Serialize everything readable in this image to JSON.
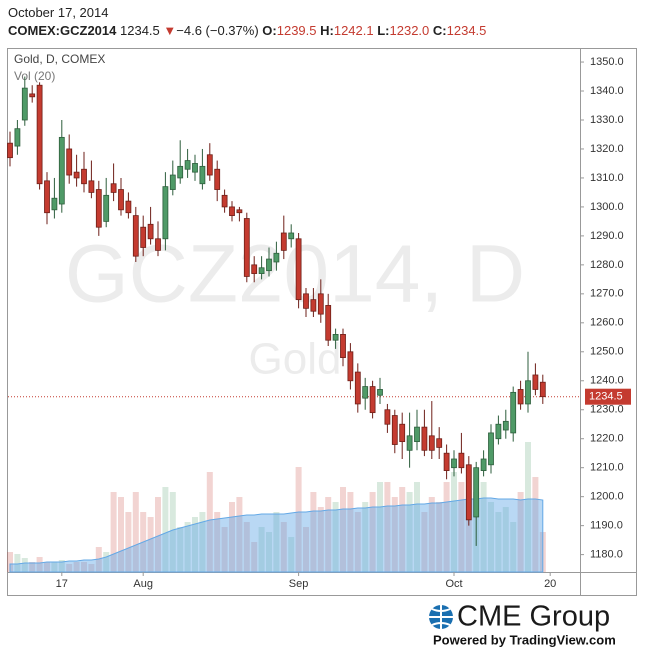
{
  "header": {
    "date": "October 17, 2014",
    "symbol": "COMEX:GCZ2014",
    "last": "1234.5",
    "arrow": "▼",
    "change": "−4.6 (−0.37%)",
    "ohlc": [
      {
        "key": "O:",
        "value": "1239.5"
      },
      {
        "key": "H:",
        "value": "1242.1"
      },
      {
        "key": "L:",
        "value": "1232.0"
      },
      {
        "key": "C:",
        "value": "1234.5"
      }
    ]
  },
  "chart_data": {
    "type": "candlestick",
    "legend": "Gold, D, COMEX",
    "volume_legend": "Vol (20)",
    "watermark": "GCZ2014, D",
    "watermark_sub": "Gold",
    "categories": [
      null,
      null,
      null,
      null,
      null,
      null,
      null,
      "17",
      null,
      null,
      null,
      null,
      null,
      null,
      null,
      null,
      null,
      null,
      "Aug",
      null,
      null,
      null,
      null,
      null,
      null,
      null,
      null,
      null,
      null,
      null,
      null,
      null,
      null,
      null,
      null,
      null,
      null,
      null,
      null,
      "Sep",
      null,
      null,
      null,
      null,
      null,
      null,
      null,
      null,
      null,
      null,
      null,
      null,
      null,
      null,
      null,
      null,
      null,
      null,
      null,
      null,
      "Oct",
      null,
      null,
      null,
      null,
      null,
      null,
      null,
      null,
      null,
      null,
      null,
      null,
      "20"
    ],
    "open": [
      1322,
      1321,
      1330,
      1339,
      1342,
      1309,
      1299,
      1301,
      1320,
      1312,
      1313,
      1309,
      1306,
      1295,
      1308,
      1306,
      1302,
      1297,
      1293,
      1294,
      1289,
      1289,
      1306,
      1310,
      1313,
      1312,
      1308,
      1318,
      1313,
      1304,
      1300,
      1299,
      1296,
      1280,
      1277,
      1278,
      1281,
      1291,
      1289,
      1289,
      1270,
      1268,
      1270,
      1266,
      1254,
      1256,
      1250,
      1243,
      1234,
      1238,
      1235,
      1230,
      1228,
      1225,
      1216,
      1219,
      1224,
      1221,
      1220,
      1215,
      1210,
      1215,
      1211,
      1193,
      1209,
      1211,
      1220,
      1223,
      1222,
      1237,
      1232,
      1242,
      1239.5,
      null
    ],
    "high": [
      1326,
      1330,
      1345,
      1342,
      1343,
      1312,
      1310,
      1330,
      1325,
      1318,
      1319,
      1316,
      1309,
      1310,
      1315,
      1310,
      1305,
      1300,
      1297,
      1300,
      1295,
      1312,
      1316,
      1323,
      1320,
      1318,
      1320,
      1322,
      1316,
      1306,
      1302,
      1300,
      1298,
      1283,
      1283,
      1286,
      1288,
      1297,
      1294,
      1291,
      1272,
      1272,
      1275,
      1270,
      1258,
      1258,
      1253,
      1246,
      1241,
      1240,
      1241,
      1232,
      1230,
      1229,
      1229,
      1230,
      1230,
      1233,
      1224,
      1218,
      1216,
      1222,
      1214,
      1212,
      1216,
      1225,
      1228,
      1230,
      1238,
      1240,
      1250,
      1246,
      1242.1,
      null
    ],
    "low": [
      1314,
      1318,
      1328,
      1336,
      1306,
      1294,
      1296,
      1298,
      1308,
      1307,
      1305,
      1303,
      1290,
      1293,
      1302,
      1297,
      1296,
      1281,
      1283,
      1287,
      1283,
      1285,
      1304,
      1308,
      1310,
      1309,
      1306,
      1309,
      1302,
      1298,
      1295,
      1295,
      1274,
      1274,
      1275,
      1276,
      1278,
      1282,
      1286,
      1265,
      1262,
      1262,
      1260,
      1252,
      1251,
      1245,
      1237,
      1229,
      1230,
      1227,
      1232,
      1222,
      1215,
      1213,
      1210,
      1216,
      1214,
      1213,
      1213,
      1206,
      1207,
      1208,
      1190,
      1183,
      1207,
      1208,
      1218,
      1220,
      1219,
      1230,
      1229,
      1235,
      1232,
      null
    ],
    "close": [
      1317,
      1327,
      1341,
      1338,
      1308,
      1298,
      1303,
      1324,
      1311,
      1310,
      1308,
      1305,
      1293,
      1304,
      1305,
      1299,
      1298,
      1283,
      1286,
      1289,
      1285,
      1307,
      1311,
      1314,
      1316,
      1315,
      1314,
      1311,
      1306,
      1300,
      1297,
      1298,
      1276,
      1277,
      1279,
      1282,
      1284,
      1285,
      1291,
      1268,
      1265,
      1264,
      1263,
      1254,
      1256,
      1248,
      1240,
      1232,
      1238,
      1229,
      1237,
      1225,
      1218,
      1219,
      1221,
      1224,
      1216,
      1216,
      1217,
      1209,
      1213,
      1210,
      1192,
      1210,
      1213,
      1222,
      1225,
      1226,
      1236,
      1232,
      1240,
      1237,
      1234.5,
      null
    ],
    "volume": [
      20,
      18,
      14,
      10,
      15,
      10,
      10,
      12,
      8,
      10,
      10,
      8,
      25,
      20,
      80,
      75,
      60,
      80,
      60,
      55,
      75,
      85,
      80,
      45,
      50,
      55,
      60,
      100,
      60,
      45,
      70,
      75,
      50,
      30,
      45,
      40,
      60,
      50,
      35,
      105,
      45,
      80,
      65,
      75,
      70,
      85,
      80,
      60,
      70,
      80,
      90,
      90,
      75,
      85,
      80,
      90,
      60,
      75,
      70,
      90,
      100,
      90,
      105,
      80,
      90,
      70,
      60,
      65,
      50,
      80,
      130,
      95,
      40,
      null
    ],
    "volume_ma": [
      8,
      8,
      9,
      9,
      9,
      10,
      10,
      10,
      11,
      11,
      12,
      12,
      13,
      15,
      18,
      21,
      24,
      27,
      30,
      33,
      36,
      39,
      42,
      44,
      46,
      48,
      50,
      52,
      53,
      54,
      55,
      56,
      57,
      57,
      58,
      58,
      58,
      58,
      59,
      60,
      60,
      61,
      61,
      62,
      62,
      63,
      63,
      64,
      64,
      65,
      65,
      66,
      66,
      67,
      67,
      68,
      68,
      69,
      69,
      70,
      71,
      72,
      73,
      73,
      74,
      74,
      73,
      73,
      73,
      72,
      73,
      73,
      72,
      null
    ],
    "up_color": "#4f9a67",
    "down_color": "#c43b30",
    "volume_ma_color": "#63a8e6",
    "last_price": 1234.5,
    "ylim": [
      1174,
      1354.5
    ],
    "yticks": [
      {
        "value": 1180,
        "label": "1180.0"
      },
      {
        "value": 1190,
        "label": "1190.0"
      },
      {
        "value": 1200,
        "label": "1200.0"
      },
      {
        "value": 1210,
        "label": "1210.0"
      },
      {
        "value": 1220,
        "label": "1220.0"
      },
      {
        "value": 1230,
        "label": "1230.0"
      },
      {
        "value": 1240,
        "label": "1240.0"
      },
      {
        "value": 1250,
        "label": "1250.0"
      },
      {
        "value": 1260,
        "label": "1260.0"
      },
      {
        "value": 1270,
        "label": "1270.0"
      },
      {
        "value": 1280,
        "label": "1280.0"
      },
      {
        "value": 1290,
        "label": "1290.0"
      },
      {
        "value": 1300,
        "label": "1300.0"
      },
      {
        "value": 1310,
        "label": "1310.0"
      },
      {
        "value": 1320,
        "label": "1320.0"
      },
      {
        "value": 1330,
        "label": "1330.0"
      },
      {
        "value": 1340,
        "label": "1340.0"
      },
      {
        "value": 1350,
        "label": "1350.0"
      }
    ],
    "grid": false
  },
  "footer": {
    "brand": "CME Group",
    "powered": "Powered by TradingView.com"
  }
}
